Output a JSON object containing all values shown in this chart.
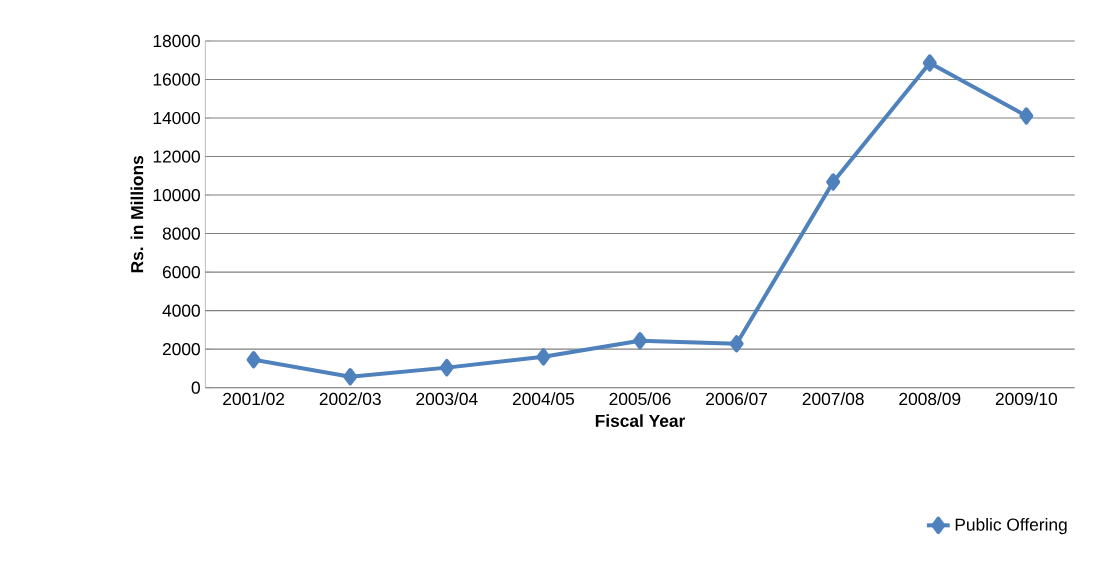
{
  "chart_data": {
    "type": "line",
    "xlabel": "Fiscal Year",
    "ylabel": "Rs. in Millions",
    "categories": [
      "2001/02",
      "2002/03",
      "2003/04",
      "2004/05",
      "2005/06",
      "2006/07",
      "2007/08",
      "2008/09",
      "2009/10"
    ],
    "series": [
      {
        "name": "Public Offering",
        "color": "#4f81bd",
        "values": [
          1450,
          570,
          1040,
          1600,
          2440,
          2280,
          10680,
          16860,
          14110
        ]
      }
    ],
    "ylim": [
      0,
      18000
    ],
    "yticks": [
      0,
      2000,
      4000,
      6000,
      8000,
      10000,
      12000,
      14000,
      16000,
      18000
    ],
    "grid": "y",
    "legend": "bottom right",
    "marker": "diamond",
    "line_style": "solid"
  }
}
